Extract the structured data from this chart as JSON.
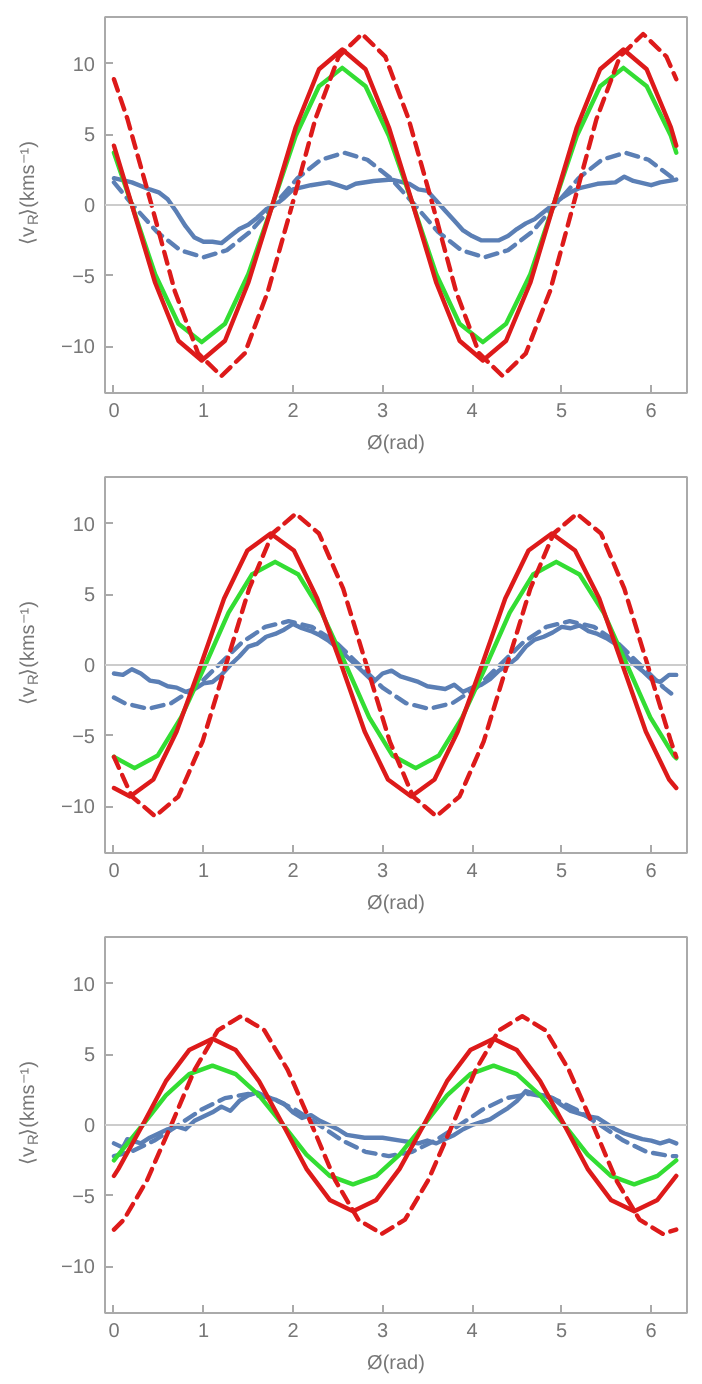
{
  "chart_data": [
    {
      "type": "line",
      "xlabel": "Ø(rad)",
      "ylabel": "⟨v$_{R}$⟩(kms⁻¹)",
      "xlim": [
        -0.1,
        6.4
      ],
      "ylim": [
        -13.3,
        13.3
      ],
      "xticks": [
        0,
        1,
        2,
        3,
        4,
        5,
        6
      ],
      "yticks": [
        -10,
        -5,
        0,
        5,
        10
      ],
      "grid": false,
      "legend": false,
      "ref_lines": [
        {
          "axis": "y",
          "value": 0,
          "color": "#cccccc"
        }
      ],
      "series": [
        {
          "color": "#5b7fb5",
          "line_style": "solid",
          "x": [
            0,
            0.2,
            0.4,
            0.5,
            0.6,
            0.7,
            0.8,
            0.9,
            1.0,
            1.1,
            1.2,
            1.3,
            1.4,
            1.5,
            1.6,
            1.7,
            1.8,
            1.9,
            2.0,
            2.2,
            2.4,
            2.5,
            2.6,
            2.7,
            2.9,
            3.1,
            3.3,
            3.4,
            3.5,
            3.6,
            3.7,
            3.8,
            3.9,
            4.0,
            4.1,
            4.3,
            4.4,
            4.5,
            4.6,
            4.7,
            4.8,
            4.9,
            5.0,
            5.1,
            5.2,
            5.4,
            5.6,
            5.7,
            5.8,
            6.0,
            6.1,
            6.28
          ],
          "values": [
            1.9,
            1.6,
            1.1,
            0.9,
            0.4,
            -0.5,
            -1.5,
            -2.3,
            -2.6,
            -2.6,
            -2.7,
            -2.2,
            -1.7,
            -1.4,
            -0.9,
            -0.3,
            0,
            0.5,
            1.1,
            1.4,
            1.6,
            1.4,
            1.2,
            1.5,
            1.7,
            1.8,
            1.5,
            1.1,
            1.0,
            0.3,
            -0.4,
            -1.1,
            -1.8,
            -2.2,
            -2.5,
            -2.5,
            -2.2,
            -1.7,
            -1.3,
            -1.0,
            -0.5,
            0,
            0.5,
            0.9,
            1.2,
            1.5,
            1.6,
            2.0,
            1.7,
            1.4,
            1.6,
            1.8
          ]
        },
        {
          "color": "#5b7fb5",
          "line_style": "dashed",
          "x": [
            0,
            0.21,
            0.48,
            0.74,
            1.0,
            1.26,
            1.52,
            1.79,
            2.05,
            2.31,
            2.57,
            2.83,
            3.09,
            3.36,
            3.62,
            3.88,
            4.14,
            4.4,
            4.67,
            4.93,
            5.19,
            5.45,
            5.71,
            5.97,
            6.24,
            6.28
          ],
          "values": [
            1.6,
            0,
            -1.9,
            -3.2,
            -3.7,
            -3.2,
            -1.9,
            0,
            1.9,
            3.2,
            3.7,
            3.2,
            1.9,
            0,
            -1.9,
            -3.2,
            -3.7,
            -3.2,
            -1.9,
            0,
            1.9,
            3.2,
            3.7,
            3.2,
            1.9,
            1.6
          ]
        },
        {
          "color": "#33dd33",
          "line_style": "solid",
          "x": [
            0,
            0.2,
            0.46,
            0.72,
            0.98,
            1.24,
            1.5,
            1.77,
            2.03,
            2.29,
            2.55,
            2.81,
            3.07,
            3.34,
            3.6,
            3.86,
            4.12,
            4.38,
            4.65,
            4.91,
            5.17,
            5.43,
            5.69,
            5.95,
            6.22,
            6.28
          ],
          "values": [
            3.7,
            0,
            -4.9,
            -8.4,
            -9.7,
            -8.4,
            -4.9,
            0,
            4.9,
            8.4,
            9.7,
            8.4,
            4.9,
            0,
            -4.9,
            -8.4,
            -9.7,
            -8.4,
            -4.9,
            0,
            4.9,
            8.4,
            9.7,
            8.4,
            4.9,
            3.7
          ]
        },
        {
          "color": "#dd1a1a",
          "line_style": "solid",
          "x": [
            0,
            0.2,
            0.46,
            0.72,
            0.98,
            1.24,
            1.5,
            1.77,
            2.03,
            2.29,
            2.55,
            2.81,
            3.07,
            3.34,
            3.6,
            3.86,
            4.12,
            4.38,
            4.65,
            4.91,
            5.17,
            5.43,
            5.69,
            5.95,
            6.22,
            6.28
          ],
          "values": [
            4.2,
            0,
            -5.5,
            -9.6,
            -11,
            -9.6,
            -5.5,
            0,
            5.5,
            9.6,
            11,
            9.6,
            5.5,
            0,
            -5.5,
            -9.6,
            -11,
            -9.6,
            -5.5,
            0,
            5.5,
            9.6,
            11,
            9.6,
            5.5,
            4.2
          ]
        },
        {
          "color": "#dd1a1a",
          "line_style": "dashed",
          "x": [
            0,
            0.15,
            0.42,
            0.68,
            0.94,
            1.2,
            1.46,
            1.72,
            1.99,
            2.25,
            2.51,
            2.77,
            3.03,
            3.29,
            3.56,
            3.82,
            4.08,
            4.34,
            4.6,
            4.87,
            5.13,
            5.39,
            5.65,
            5.91,
            6.17,
            6.28
          ],
          "values": [
            8.9,
            6.1,
            0,
            -6.1,
            -10.5,
            -12.1,
            -10.5,
            -6.1,
            0,
            6.1,
            10.5,
            12.1,
            10.5,
            6.1,
            0,
            -6.1,
            -10.5,
            -12.1,
            -10.5,
            -6.1,
            0,
            6.1,
            10.5,
            12.1,
            10.5,
            8.9
          ]
        }
      ]
    },
    {
      "type": "line",
      "xlabel": "Ø(rad)",
      "ylabel": "⟨v$_{R}$⟩(kms⁻¹)",
      "xlim": [
        -0.1,
        6.4
      ],
      "ylim": [
        -13.3,
        13.3
      ],
      "xticks": [
        0,
        1,
        2,
        3,
        4,
        5,
        6
      ],
      "yticks": [
        -10,
        -5,
        0,
        5,
        10
      ],
      "grid": false,
      "legend": false,
      "ref_lines": [
        {
          "axis": "y",
          "value": 0,
          "color": "#cccccc"
        }
      ],
      "series": [
        {
          "color": "#5b7fb5",
          "line_style": "solid",
          "x": [
            0,
            0.1,
            0.2,
            0.3,
            0.4,
            0.5,
            0.6,
            0.7,
            0.8,
            0.9,
            1.0,
            1.1,
            1.2,
            1.3,
            1.4,
            1.5,
            1.6,
            1.7,
            1.8,
            1.9,
            2.0,
            2.1,
            2.2,
            2.3,
            2.4,
            2.5,
            2.6,
            2.7,
            2.8,
            2.9,
            3.0,
            3.1,
            3.2,
            3.3,
            3.4,
            3.5,
            3.7,
            3.8,
            3.9,
            4.0,
            4.1,
            4.2,
            4.3,
            4.4,
            4.5,
            4.6,
            4.7,
            4.8,
            4.9,
            5.0,
            5.1,
            5.2,
            5.3,
            5.4,
            5.5,
            5.6,
            5.7,
            5.8,
            5.9,
            6.0,
            6.1,
            6.2,
            6.28
          ],
          "values": [
            -0.6,
            -0.7,
            -0.3,
            -0.6,
            -1.1,
            -1.2,
            -1.5,
            -1.6,
            -1.9,
            -1.7,
            -1.3,
            -1.2,
            -0.7,
            0,
            0.6,
            1.3,
            1.5,
            2.0,
            2.2,
            2.5,
            2.9,
            2.6,
            2.4,
            2.1,
            1.7,
            1.2,
            0.6,
            0,
            -0.6,
            -1.2,
            -0.6,
            -0.4,
            -0.8,
            -1.0,
            -1.2,
            -1.5,
            -1.7,
            -1.4,
            -1.9,
            -1.6,
            -1.4,
            -1.0,
            -0.4,
            0,
            0.5,
            1.3,
            1.8,
            2.0,
            2.3,
            2.7,
            2.6,
            2.8,
            2.4,
            2.2,
            1.9,
            1.5,
            0.8,
            0.1,
            -0.4,
            -1.0,
            -1.2,
            -0.7,
            -0.7
          ]
        },
        {
          "color": "#5b7fb5",
          "line_style": "dashed",
          "x": [
            0,
            0.12,
            0.38,
            0.64,
            0.91,
            1.17,
            1.43,
            1.69,
            1.95,
            2.21,
            2.48,
            2.74,
            3.0,
            3.26,
            3.52,
            3.78,
            4.05,
            4.31,
            4.57,
            4.83,
            5.09,
            5.36,
            5.62,
            5.88,
            6.14,
            6.28
          ],
          "values": [
            -2.3,
            -2.7,
            -3.1,
            -2.7,
            -1.6,
            0,
            1.6,
            2.7,
            3.1,
            2.7,
            1.6,
            0,
            -1.6,
            -2.7,
            -3.1,
            -2.7,
            -1.6,
            0,
            1.6,
            2.7,
            3.1,
            2.7,
            1.6,
            0,
            -1.6,
            -2.3
          ]
        },
        {
          "color": "#33dd33",
          "line_style": "solid",
          "x": [
            0,
            0.23,
            0.49,
            0.75,
            1.02,
            1.28,
            1.54,
            1.8,
            2.06,
            2.32,
            2.59,
            2.85,
            3.11,
            3.37,
            3.63,
            3.89,
            4.16,
            4.42,
            4.68,
            4.94,
            5.2,
            5.47,
            5.73,
            5.99,
            6.25,
            6.28
          ],
          "values": [
            -6.5,
            -7.3,
            -6.4,
            -3.7,
            0,
            3.7,
            6.4,
            7.3,
            6.4,
            3.7,
            0,
            -3.7,
            -6.4,
            -7.3,
            -6.4,
            -3.7,
            0,
            3.7,
            6.4,
            7.3,
            6.4,
            3.7,
            0,
            -3.7,
            -6.4,
            -6.6
          ]
        },
        {
          "color": "#dd1a1a",
          "line_style": "solid",
          "x": [
            0,
            0.18,
            0.44,
            0.7,
            0.97,
            1.23,
            1.49,
            1.75,
            2.01,
            2.27,
            2.54,
            2.8,
            3.06,
            3.32,
            3.58,
            3.84,
            4.11,
            4.37,
            4.63,
            4.89,
            5.15,
            5.42,
            5.68,
            5.94,
            6.2,
            6.28
          ],
          "values": [
            -8.7,
            -9.3,
            -8.1,
            -4.7,
            0,
            4.7,
            8.1,
            9.3,
            8.1,
            4.7,
            0,
            -4.7,
            -8.1,
            -9.3,
            -8.1,
            -4.7,
            0,
            4.7,
            8.1,
            9.3,
            8.1,
            4.7,
            0,
            -4.7,
            -8.1,
            -8.7
          ]
        },
        {
          "color": "#dd1a1a",
          "line_style": "dashed",
          "x": [
            0,
            0.2,
            0.46,
            0.72,
            0.99,
            1.25,
            1.51,
            1.77,
            2.03,
            2.29,
            2.56,
            2.82,
            3.08,
            3.34,
            3.6,
            3.86,
            4.13,
            4.39,
            4.65,
            4.91,
            5.17,
            5.44,
            5.7,
            5.96,
            6.22,
            6.28
          ],
          "values": [
            -6.5,
            -9.3,
            -10.7,
            -9.3,
            -5.4,
            0,
            5.4,
            9.3,
            10.7,
            9.3,
            5.4,
            0,
            -5.4,
            -9.3,
            -10.7,
            -9.3,
            -5.4,
            0,
            5.4,
            9.3,
            10.7,
            9.3,
            5.4,
            0,
            -5.4,
            -6.5
          ]
        }
      ]
    },
    {
      "type": "line",
      "xlabel": "Ø(rad)",
      "ylabel": "⟨v$_{R}$⟩(kms⁻¹)",
      "xlim": [
        -0.1,
        6.4
      ],
      "ylim": [
        -13.3,
        13.3
      ],
      "xticks": [
        0,
        1,
        2,
        3,
        4,
        5,
        6
      ],
      "yticks": [
        -10,
        -5,
        0,
        5,
        10
      ],
      "grid": false,
      "legend": false,
      "ref_lines": [
        {
          "axis": "y",
          "value": 0,
          "color": "#cccccc"
        }
      ],
      "series": [
        {
          "color": "#5b7fb5",
          "line_style": "solid",
          "x": [
            0,
            0.1,
            0.15,
            0.3,
            0.4,
            0.5,
            0.6,
            0.7,
            0.8,
            0.9,
            1.0,
            1.1,
            1.2,
            1.3,
            1.4,
            1.5,
            1.6,
            1.7,
            1.8,
            1.9,
            2.0,
            2.1,
            2.2,
            2.3,
            2.4,
            2.5,
            2.6,
            2.8,
            3.0,
            3.2,
            3.3,
            3.4,
            3.5,
            3.6,
            3.7,
            3.8,
            3.9,
            4.0,
            4.1,
            4.2,
            4.3,
            4.4,
            4.5,
            4.6,
            4.7,
            4.8,
            4.9,
            5.0,
            5.1,
            5.2,
            5.3,
            5.4,
            5.5,
            5.6,
            5.7,
            5.8,
            5.9,
            6.0,
            6.1,
            6.2,
            6.28
          ],
          "values": [
            -1.3,
            -1.6,
            -1.0,
            -1.3,
            -0.9,
            -0.6,
            -0.3,
            -0.1,
            -0.3,
            0.3,
            0.6,
            0.9,
            1.3,
            1.0,
            1.7,
            2.1,
            2.3,
            2.0,
            1.8,
            1.5,
            0.9,
            0.5,
            0.7,
            0.3,
            0,
            -0.3,
            -0.7,
            -0.9,
            -0.9,
            -1.1,
            -1.2,
            -1.3,
            -1.1,
            -1.3,
            -1.0,
            -0.7,
            -0.3,
            0,
            0.2,
            0.4,
            0.8,
            1.2,
            1.7,
            2.4,
            2.2,
            2.1,
            1.9,
            1.4,
            1.0,
            0.8,
            0.6,
            0.5,
            0.1,
            -0.3,
            -0.6,
            -0.8,
            -1.0,
            -1.1,
            -1.3,
            -1.1,
            -1.3
          ]
        },
        {
          "color": "#5b7fb5",
          "line_style": "dashed",
          "x": [
            0,
            0.19,
            0.45,
            0.72,
            0.98,
            1.24,
            1.5,
            1.76,
            2.02,
            2.29,
            2.55,
            2.81,
            3.07,
            3.33,
            3.59,
            3.86,
            4.12,
            4.38,
            4.64,
            4.9,
            5.16,
            5.43,
            5.69,
            5.95,
            6.21,
            6.28
          ],
          "values": [
            -2.2,
            -1.9,
            -1.1,
            0,
            1.1,
            1.9,
            2.2,
            1.9,
            1.1,
            0,
            -1.1,
            -1.9,
            -2.2,
            -1.9,
            -1.1,
            0,
            1.1,
            1.9,
            2.2,
            1.9,
            1.1,
            0,
            -1.1,
            -1.9,
            -2.2,
            -2.2
          ]
        },
        {
          "color": "#33dd33",
          "line_style": "solid",
          "x": [
            0,
            0.05,
            0.32,
            0.58,
            0.84,
            1.1,
            1.36,
            1.62,
            1.89,
            2.15,
            2.41,
            2.67,
            2.93,
            3.19,
            3.46,
            3.72,
            3.98,
            4.24,
            4.5,
            4.76,
            5.03,
            5.29,
            5.55,
            5.81,
            6.07,
            6.28
          ],
          "values": [
            -2.5,
            -2.1,
            0,
            2.1,
            3.6,
            4.2,
            3.6,
            2.1,
            0,
            -2.1,
            -3.6,
            -4.2,
            -3.6,
            -2.1,
            0,
            2.1,
            3.6,
            4.2,
            3.6,
            2.1,
            0,
            -2.1,
            -3.6,
            -4.2,
            -3.6,
            -2.5
          ]
        },
        {
          "color": "#dd1a1a",
          "line_style": "solid",
          "x": [
            0,
            0.05,
            0.32,
            0.58,
            0.84,
            1.1,
            1.36,
            1.62,
            1.89,
            2.15,
            2.41,
            2.67,
            2.93,
            3.19,
            3.46,
            3.72,
            3.98,
            4.24,
            4.5,
            4.76,
            5.03,
            5.29,
            5.55,
            5.81,
            6.07,
            6.28
          ],
          "values": [
            -3.6,
            -3.1,
            0,
            3.1,
            5.3,
            6.1,
            5.3,
            3.1,
            0,
            -3.1,
            -5.3,
            -6.1,
            -5.3,
            -3.1,
            0,
            3.1,
            5.3,
            6.1,
            5.3,
            3.1,
            0,
            -3.1,
            -5.3,
            -6.1,
            -5.3,
            -3.6
          ]
        },
        {
          "color": "#dd1a1a",
          "line_style": "dashed",
          "x": [
            0,
            0.11,
            0.37,
            0.64,
            0.9,
            1.16,
            1.42,
            1.68,
            1.94,
            2.21,
            2.47,
            2.73,
            2.99,
            3.25,
            3.51,
            3.78,
            4.04,
            4.3,
            4.56,
            4.82,
            5.08,
            5.35,
            5.61,
            5.87,
            6.13,
            6.28
          ],
          "values": [
            -7.4,
            -6.7,
            -3.9,
            0,
            3.9,
            6.7,
            7.7,
            6.7,
            3.9,
            0,
            -3.9,
            -6.7,
            -7.7,
            -6.7,
            -3.9,
            0,
            3.9,
            6.7,
            7.7,
            6.7,
            3.9,
            0,
            -3.9,
            -6.7,
            -7.7,
            -7.4
          ]
        }
      ]
    }
  ]
}
